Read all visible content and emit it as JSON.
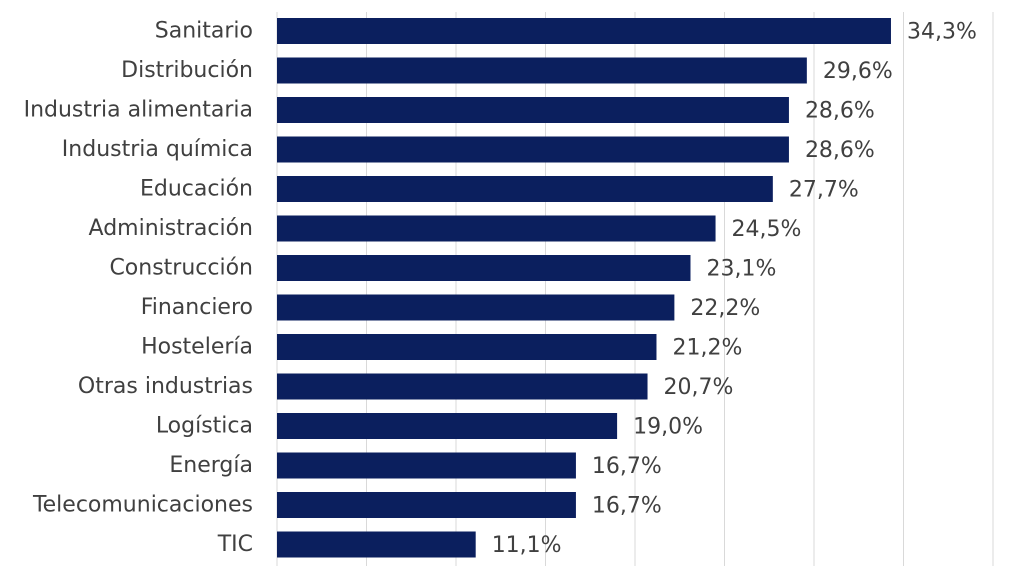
{
  "chart_data": {
    "type": "bar",
    "orientation": "horizontal",
    "title": "",
    "xlabel": "",
    "ylabel": "",
    "categories": [
      "Sanitario",
      "Distribución",
      "Industria alimentaria",
      "Industria química",
      "Educación",
      "Administración",
      "Construcción",
      "Financiero",
      "Hostelería",
      "Otras industrias",
      "Logística",
      "Energía",
      "Telecomunicaciones",
      "TIC"
    ],
    "values": [
      34.3,
      29.6,
      28.6,
      28.6,
      27.7,
      24.5,
      23.1,
      22.2,
      21.2,
      20.7,
      19.0,
      16.7,
      16.7,
      11.1
    ],
    "data_labels": [
      "34,3%",
      "29,6%",
      "28,6%",
      "28,6%",
      "27,7%",
      "24,5%",
      "23,1%",
      "22,2%",
      "21,2%",
      "20,7%",
      "19,0%",
      "16,7%",
      "16,7%",
      "11,1%"
    ],
    "xlim": [
      0,
      40
    ],
    "grid": "vertical",
    "legend": "none",
    "colors": {
      "bar": "#0b1f5e",
      "grid": "#d9d9d9",
      "text": "#404040"
    }
  }
}
